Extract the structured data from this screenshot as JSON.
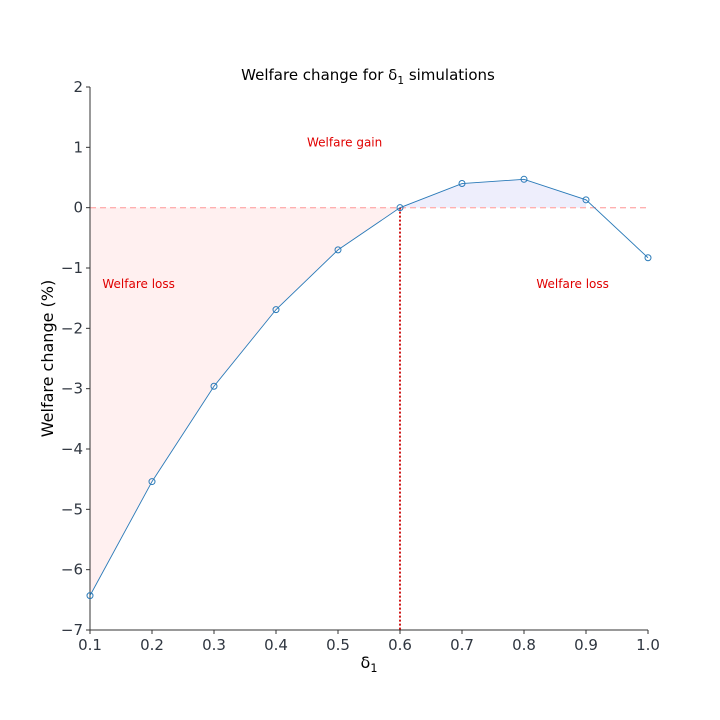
{
  "chart_data": {
    "type": "line",
    "title": "Welfare change for δ₁ simulations",
    "xlabel": "δ₁",
    "ylabel": "Welfare change (%)",
    "xlim": [
      0.1,
      1.0
    ],
    "ylim": [
      -7,
      2
    ],
    "xticks": [
      "0.1",
      "0.2",
      "0.3",
      "0.4",
      "0.5",
      "0.6",
      "0.7",
      "0.8",
      "0.9",
      "1.0"
    ],
    "yticks": [
      "2",
      "1",
      "0",
      "−1",
      "−2",
      "−3",
      "−4",
      "−5",
      "−6",
      "−7"
    ],
    "x": [
      0.1,
      0.2,
      0.3,
      0.4,
      0.5,
      0.6,
      0.7,
      0.8,
      0.9,
      1.0
    ],
    "y": [
      -6.43,
      -4.54,
      -2.96,
      -1.69,
      -0.7,
      0.0,
      0.4,
      0.47,
      0.13,
      -0.83
    ],
    "zero_line": 0,
    "threshold_x": 0.6,
    "annotations": [
      {
        "text": "Welfare gain",
        "x": 0.45,
        "y": 1.0
      },
      {
        "text": "Welfare loss",
        "x": 0.12,
        "y": -1.35
      },
      {
        "text": "Welfare loss",
        "x": 0.82,
        "y": -1.35
      }
    ],
    "colors": {
      "line": "#2a7ab8",
      "loss_fill": "#fff0f0",
      "gain_fill": "#eeeefc",
      "zero_line": "#ffb0b0",
      "threshold": "#cc0000",
      "annotation": "#e00000"
    },
    "grid": false
  }
}
